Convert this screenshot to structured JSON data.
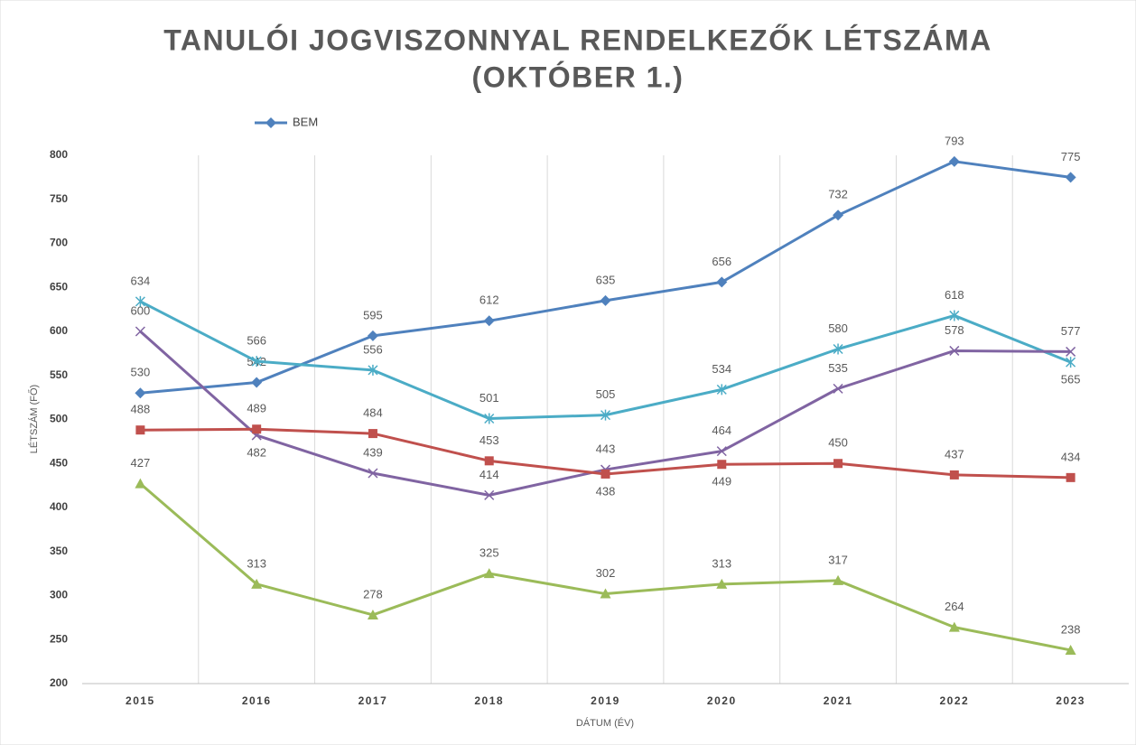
{
  "chart_data": {
    "type": "line",
    "title": [
      "TANULÓI JOGVISZONNYAL RENDELKEZŐK LÉTSZÁMA",
      "(OKTÓBER 1.)"
    ],
    "xlabel": "DÁTUM (ÉV)",
    "ylabel": "LÉTSZÁM (FŐ)",
    "categories": [
      "2015",
      "2016",
      "2017",
      "2018",
      "2019",
      "2020",
      "2021",
      "2022",
      "2023"
    ],
    "series": [
      {
        "name": "BEM",
        "color": "#4f81bd",
        "marker": "diamond",
        "values": [
          530,
          542,
          595,
          612,
          635,
          656,
          732,
          793,
          775
        ]
      },
      {
        "color": "#4bacc6",
        "marker": "star",
        "values": [
          634,
          566,
          556,
          501,
          505,
          534,
          580,
          618,
          565
        ]
      },
      {
        "color": "#8064a2",
        "marker": "cross",
        "values": [
          600,
          482,
          439,
          414,
          443,
          464,
          535,
          578,
          577
        ]
      },
      {
        "color": "#c0504d",
        "marker": "square",
        "values": [
          488,
          489,
          484,
          453,
          438,
          449,
          450,
          437,
          434
        ]
      },
      {
        "color": "#9bbb59",
        "marker": "triangle",
        "values": [
          427,
          313,
          278,
          325,
          302,
          313,
          317,
          264,
          238
        ]
      }
    ],
    "ylim": [
      200,
      800
    ],
    "yticks": [
      200,
      250,
      300,
      350,
      400,
      450,
      500,
      550,
      600,
      650,
      700,
      750,
      800
    ],
    "grid": "x",
    "legend": "top-left"
  }
}
